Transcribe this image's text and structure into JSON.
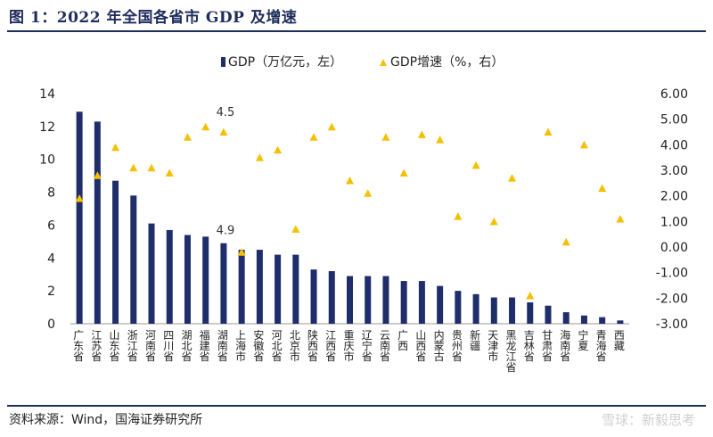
{
  "title": "图 1：2022 年全国各省市 GDP 及增速",
  "source": "资料来源：Wind，国海证券研究所",
  "watermark": "雪球：新毅思考",
  "colors": {
    "bar": "#1f2d6b",
    "marker": "#f5c000",
    "rule": "#1f2d5c",
    "axis": "#999999"
  },
  "chart_data": {
    "type": "bar",
    "categories": [
      "广东省",
      "江苏省",
      "山东省",
      "浙江省",
      "河南省",
      "四川省",
      "湖北省",
      "福建省",
      "湖南省",
      "上海市",
      "安徽省",
      "河北省",
      "北京市",
      "陕西省",
      "江西省",
      "重庆市",
      "辽宁省",
      "云南省",
      "广西",
      "山西省",
      "内蒙古",
      "贵州省",
      "新疆",
      "天津市",
      "黑龙江省",
      "吉林省",
      "甘肃省",
      "海南省",
      "宁夏",
      "青海省",
      "西藏"
    ],
    "series": [
      {
        "name": "GDP（万亿元，左）",
        "axis": "left",
        "style": "bar",
        "values": [
          12.9,
          12.3,
          8.7,
          7.8,
          6.1,
          5.7,
          5.4,
          5.3,
          4.9,
          4.5,
          4.5,
          4.2,
          4.2,
          3.3,
          3.2,
          2.9,
          2.9,
          2.9,
          2.6,
          2.6,
          2.3,
          2.0,
          1.8,
          1.6,
          1.6,
          1.3,
          1.1,
          0.7,
          0.5,
          0.4,
          0.2
        ]
      },
      {
        "name": "GDP增速（%，右）",
        "axis": "right",
        "style": "triangle",
        "values": [
          1.9,
          2.8,
          3.9,
          3.1,
          3.1,
          2.9,
          4.3,
          4.7,
          4.5,
          -0.2,
          3.5,
          3.8,
          0.7,
          4.3,
          4.7,
          2.6,
          2.1,
          4.3,
          2.9,
          4.4,
          4.2,
          1.2,
          3.2,
          1.0,
          2.7,
          -1.9,
          4.5,
          0.2,
          4.0,
          2.3,
          1.1
        ]
      }
    ],
    "left_axis": {
      "ylim": [
        0,
        14
      ],
      "ticks": [
        "0",
        "2",
        "4",
        "6",
        "8",
        "10",
        "12",
        "14"
      ]
    },
    "right_axis": {
      "ylim": [
        -3,
        6
      ],
      "ticks": [
        "-3.00",
        "-2.00",
        "-1.00",
        "0.00",
        "1.00",
        "2.00",
        "3.00",
        "4.00",
        "5.00",
        "6.00"
      ]
    },
    "annotations": [
      {
        "text": "4.5",
        "category": "湖南省"
      },
      {
        "text": "4.9",
        "category": "湖南省"
      }
    ],
    "legend": "top-center"
  }
}
